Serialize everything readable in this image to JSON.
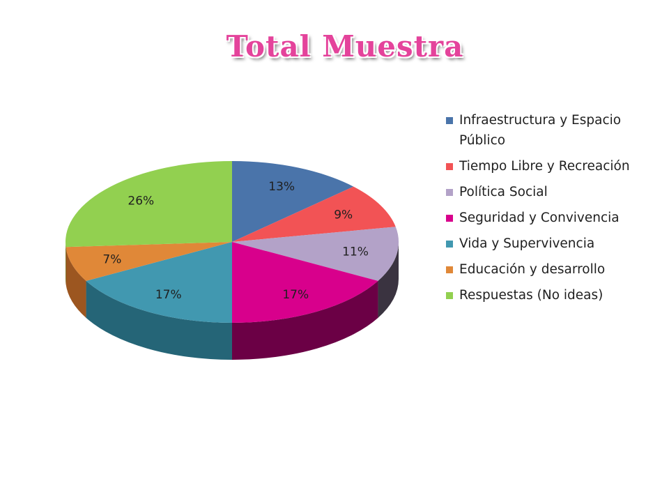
{
  "chart_data": {
    "type": "pie",
    "title": "Total Muestra",
    "legend_position": "right",
    "slices": [
      {
        "label": "Infraestructura y Espacio Público",
        "value": 13,
        "value_label": "13%",
        "color": "#4a74aa",
        "side_color": "#2b4a73"
      },
      {
        "label": "Tiempo Libre y Recreación",
        "value": 9,
        "value_label": "9%",
        "color": "#f25355",
        "side_color": "#9c2a2c"
      },
      {
        "label": "Política Social",
        "value": 11,
        "value_label": "11%",
        "color": "#b3a2c8",
        "side_color": "#3a3340"
      },
      {
        "label": " Seguridad y Convivencia",
        "value": 17,
        "value_label": "17%",
        "color": "#d8008c",
        "side_color": "#6b0045"
      },
      {
        "label": "Vida y Supervivencia",
        "value": 17,
        "value_label": "17%",
        "color": "#4198b0",
        "side_color": "#256577"
      },
      {
        "label": "Educación y desarrollo",
        "value": 7,
        "value_label": "7%",
        "color": "#e08838",
        "side_color": "#9c5620"
      },
      {
        "label": "Respuestas (No ideas)",
        "value": 26,
        "value_label": "26%",
        "color": "#92d050",
        "side_color": "#5f8e2c"
      }
    ]
  }
}
